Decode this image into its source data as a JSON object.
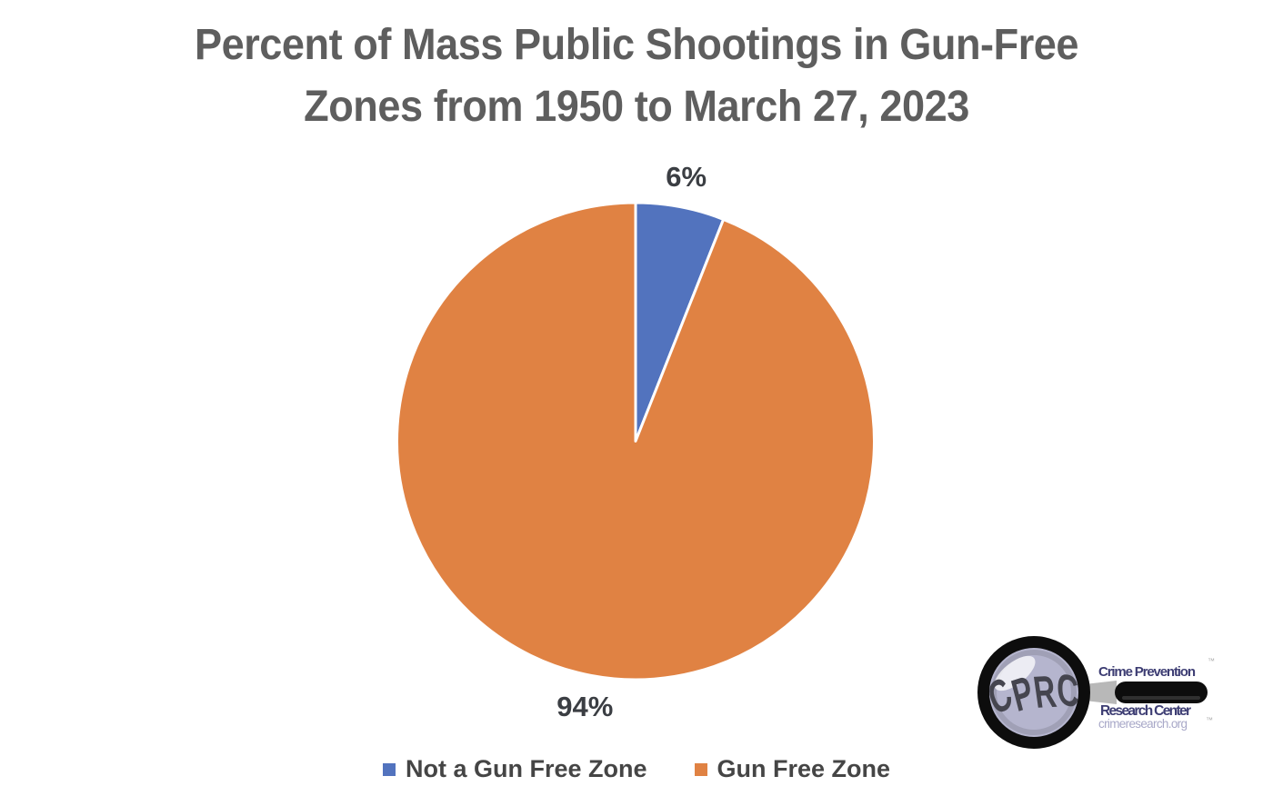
{
  "title": {
    "line1": "Percent of Mass Public Shootings in Gun-Free",
    "line2": "Zones from 1950 to March 27, 2023"
  },
  "chart_data": {
    "type": "pie",
    "title": "Percent of Mass Public Shootings in Gun-Free Zones from 1950 to March 27, 2023",
    "slices": [
      {
        "label": "Not a Gun Free Zone",
        "value": 6,
        "display_label": "6%",
        "color": "#5273BE"
      },
      {
        "label": "Gun Free Zone",
        "value": 94,
        "display_label": "94%",
        "color": "#E08243"
      }
    ],
    "start_angle_deg": 0,
    "direction": "clockwise",
    "data_labels_position": "outside-end",
    "legend_position": "bottom",
    "slice_border_color": "#FFFFFF"
  },
  "legend": {
    "items": [
      {
        "label": "Not a Gun Free Zone",
        "color": "#5273BE"
      },
      {
        "label": "Gun Free Zone",
        "color": "#E08243"
      }
    ]
  },
  "logo": {
    "monogram": "CPRC",
    "org_line1": "Crime Prevention",
    "org_line2": "Research Center",
    "website": "crimeresearch.org",
    "trademark_symbol": "™"
  },
  "colors": {
    "background": "#FFFFFF",
    "title_text": "#5E5E5E",
    "data_label_text": "#3B3E43",
    "legend_text": "#454545",
    "logo_text_dark": "#3D3D73",
    "logo_text_light": "#A8A8C8",
    "logo_lens_fill": "#B5B5CE",
    "logo_ring": "#0D0D0D",
    "logo_monogram": "#45454F",
    "logo_handle_gray": "#B8B8B8"
  }
}
